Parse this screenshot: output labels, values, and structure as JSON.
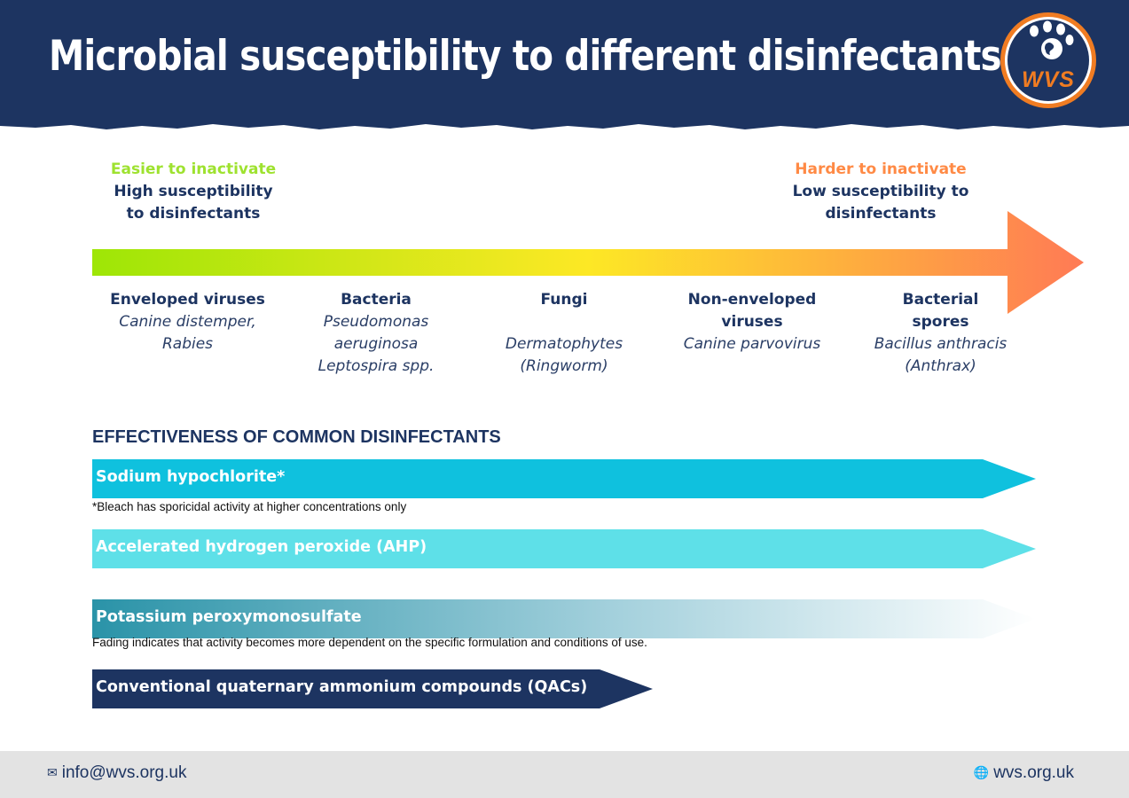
{
  "header": {
    "title": "Microbial susceptibility to different disinfectants",
    "logo_text": "WVS"
  },
  "scale": {
    "left": {
      "tag": "Easier to inactivate",
      "line1": "High susceptibility",
      "line2": "to disinfectants"
    },
    "right": {
      "tag": "Harder to inactivate",
      "line1": "Low susceptibility to",
      "line2": "disinfectants"
    }
  },
  "organisms": [
    {
      "name": "Enveloped viruses",
      "examples": [
        "Canine distemper,",
        "Rabies"
      ]
    },
    {
      "name": "Bacteria",
      "examples": [
        "Pseudomonas",
        "aeruginosa",
        "Leptospira spp."
      ]
    },
    {
      "name": "Fungi",
      "examples": [
        "Dermatophytes",
        "(Ringworm)"
      ]
    },
    {
      "name_lines": [
        "Non-enveloped",
        "viruses"
      ],
      "examples": [
        "Canine parvovirus"
      ]
    },
    {
      "name_lines": [
        "Bacterial",
        "spores"
      ],
      "examples": [
        "Bacillus anthracis",
        "(Anthrax)"
      ]
    }
  ],
  "effectiveness": {
    "title": "EFFECTIVENESS OF COMMON DISINFECTANTS",
    "bars": [
      {
        "label": "Sodium hypochlorite*",
        "color": "#0fc1de"
      },
      {
        "label": "Accelerated hydrogen peroxide (AHP)",
        "color": "#5ee0e8"
      },
      {
        "label": "Potassium peroxymonosulfate",
        "color": "#2a93a8"
      },
      {
        "label": "Conventional quaternary ammonium compounds (QACs)",
        "color": "#1d3461"
      }
    ],
    "note_bleach": "*Bleach has sporicidal activity at higher concentrations only",
    "note_fading": "Fading indicates that activity becomes more dependent on the specific formulation and conditions of use."
  },
  "footer": {
    "email": "info@wvs.org.uk",
    "website": "wvs.org.uk",
    "email_icon": "envelope-icon",
    "web_icon": "globe-icon"
  },
  "colors": {
    "navy": "#1d3461",
    "orange": "#f07c22",
    "easy_green": "#9ee22f",
    "hard_orange": "#ff8a45"
  }
}
